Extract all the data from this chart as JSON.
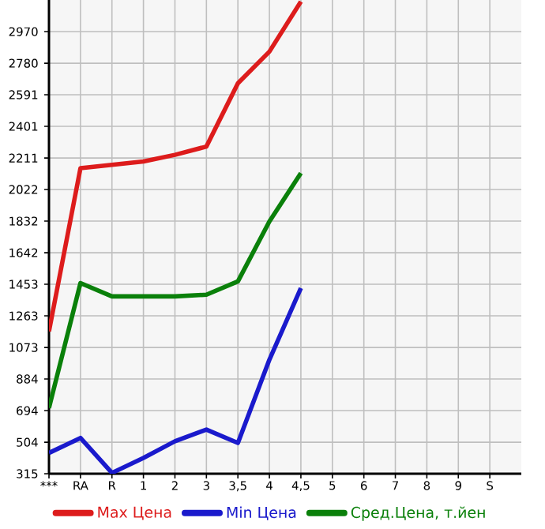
{
  "chart_data": {
    "type": "line",
    "categories": [
      "***",
      "RA",
      "R",
      "1",
      "2",
      "3",
      "3,5",
      "4",
      "4,5",
      "5",
      "6",
      "7",
      "8",
      "9",
      "S"
    ],
    "series": [
      {
        "name": "Max Цена",
        "color": "#dd1c1c",
        "values": [
          1170,
          2150,
          2170,
          2190,
          2230,
          2280,
          2660,
          2850,
          3150,
          null,
          null,
          null,
          null,
          null,
          null
        ]
      },
      {
        "name": "Min Цена",
        "color": "#1a1acc",
        "values": [
          440,
          530,
          320,
          410,
          510,
          580,
          500,
          1000,
          1430,
          null,
          null,
          null,
          null,
          null,
          null
        ]
      },
      {
        "name": "Сред.Цена, т.йен",
        "color": "#0a800a",
        "values": [
          710,
          1460,
          1380,
          1380,
          1380,
          1390,
          1470,
          1830,
          2120,
          null,
          null,
          null,
          null,
          null,
          null
        ]
      }
    ],
    "ylim": [
      315,
      3160
    ],
    "yticks": [
      315,
      504,
      694,
      884,
      1073,
      1263,
      1453,
      1642,
      1832,
      2022,
      2211,
      2401,
      2591,
      2780,
      2970
    ],
    "grid": true,
    "legend": "bottom",
    "marker": "none",
    "line_style": "solid"
  }
}
